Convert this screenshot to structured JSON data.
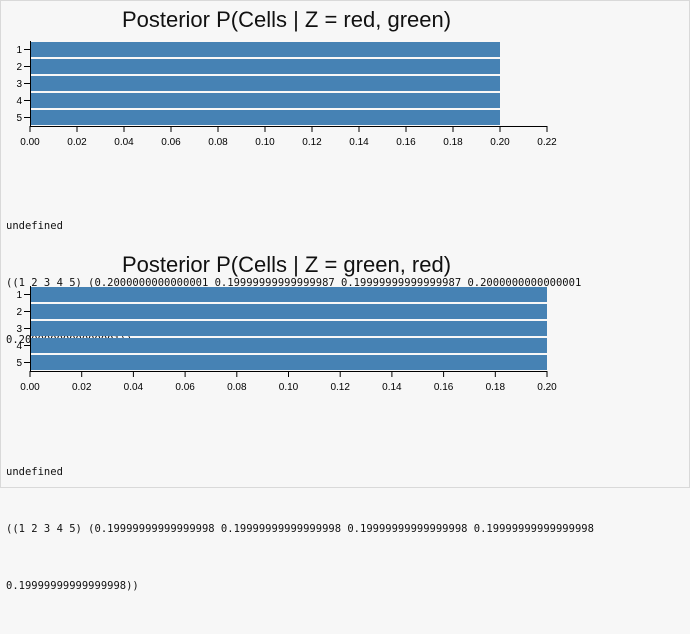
{
  "chart_data": [
    {
      "type": "bar",
      "orientation": "horizontal",
      "title": "Posterior P(Cells | Z = red, green)",
      "categories": [
        "1",
        "2",
        "3",
        "4",
        "5"
      ],
      "values": [
        0.2000000000000001,
        0.19999999999999987,
        0.19999999999999987,
        0.2000000000000001,
        0.2000000000000001
      ],
      "xlim": [
        0,
        0.22
      ],
      "xticks": [
        "0.00",
        "0.02",
        "0.04",
        "0.06",
        "0.08",
        "0.10",
        "0.12",
        "0.14",
        "0.16",
        "0.18",
        "0.20",
        "0.22"
      ],
      "bar_color": "#4682b4"
    },
    {
      "type": "bar",
      "orientation": "horizontal",
      "title": "Posterior P(Cells | Z = green, red)",
      "categories": [
        "1",
        "2",
        "3",
        "4",
        "5"
      ],
      "values": [
        0.19999999999999998,
        0.19999999999999998,
        0.19999999999999998,
        0.19999999999999998,
        0.19999999999999998
      ],
      "xlim": [
        0,
        0.2
      ],
      "xticks": [
        "0.00",
        "0.02",
        "0.04",
        "0.06",
        "0.08",
        "0.10",
        "0.12",
        "0.14",
        "0.16",
        "0.18",
        "0.20"
      ],
      "bar_color": "#4682b4"
    }
  ],
  "outputs": [
    {
      "line1": "undefined",
      "line2": "((1 2 3 4 5) (0.2000000000000001 0.19999999999999987 0.19999999999999987 0.2000000000000001",
      "line3": "0.2000000000000001))"
    },
    {
      "line1": "undefined",
      "line2": "((1 2 3 4 5) (0.19999999999999998 0.19999999999999998 0.19999999999999998 0.19999999999999998",
      "line3": "0.19999999999999998))"
    }
  ]
}
